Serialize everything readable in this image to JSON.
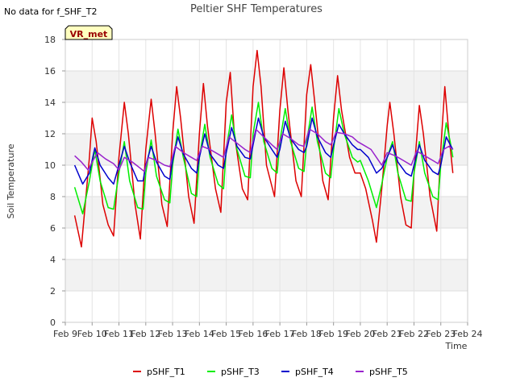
{
  "chart_data": {
    "type": "line",
    "title": "Peltier SHF Temperatures",
    "note": "No data for f_SHF_T2",
    "badge": "VR_met",
    "xlabel": "Time",
    "ylabel": "Soil Temperature",
    "xlim": [
      9,
      24
    ],
    "ylim": [
      0,
      18
    ],
    "x_ticks": [
      {
        "v": 9,
        "label": "Feb 9"
      },
      {
        "v": 10,
        "label": "Feb 10"
      },
      {
        "v": 11,
        "label": "Feb 11"
      },
      {
        "v": 12,
        "label": "Feb 12"
      },
      {
        "v": 13,
        "label": "Feb 13"
      },
      {
        "v": 14,
        "label": "Feb 14"
      },
      {
        "v": 15,
        "label": "Feb 15"
      },
      {
        "v": 16,
        "label": "Feb 16"
      },
      {
        "v": 17,
        "label": "Feb 17"
      },
      {
        "v": 18,
        "label": "Feb 18"
      },
      {
        "v": 19,
        "label": "Feb 19"
      },
      {
        "v": 20,
        "label": "Feb 20"
      },
      {
        "v": 21,
        "label": "Feb 21"
      },
      {
        "v": 22,
        "label": "Feb 22"
      },
      {
        "v": 23,
        "label": "Feb 23"
      },
      {
        "v": 24,
        "label": "Feb 24"
      }
    ],
    "y_ticks": [
      0,
      2,
      4,
      6,
      8,
      10,
      12,
      14,
      16,
      18
    ],
    "legend_position": "bottom",
    "series": [
      {
        "name": "pSHF_T1",
        "color": "#dd0000",
        "points": [
          [
            9.35,
            6.8
          ],
          [
            9.6,
            4.8
          ],
          [
            9.9,
            10.5
          ],
          [
            10.0,
            13.0
          ],
          [
            10.15,
            11.5
          ],
          [
            10.4,
            7.5
          ],
          [
            10.6,
            6.2
          ],
          [
            10.8,
            5.5
          ],
          [
            11.0,
            10.5
          ],
          [
            11.2,
            14.0
          ],
          [
            11.35,
            12.0
          ],
          [
            11.6,
            7.5
          ],
          [
            11.8,
            5.3
          ],
          [
            12.0,
            11.0
          ],
          [
            12.2,
            14.2
          ],
          [
            12.35,
            12.0
          ],
          [
            12.6,
            7.5
          ],
          [
            12.8,
            6.1
          ],
          [
            13.0,
            12.0
          ],
          [
            13.15,
            15.0
          ],
          [
            13.3,
            13.0
          ],
          [
            13.6,
            8.0
          ],
          [
            13.8,
            6.3
          ],
          [
            14.0,
            12.0
          ],
          [
            14.15,
            15.2
          ],
          [
            14.3,
            12.5
          ],
          [
            14.6,
            8.5
          ],
          [
            14.8,
            7.0
          ],
          [
            15.0,
            14.0
          ],
          [
            15.15,
            15.9
          ],
          [
            15.3,
            12.0
          ],
          [
            15.6,
            8.5
          ],
          [
            15.8,
            7.8
          ],
          [
            16.0,
            15.0
          ],
          [
            16.15,
            17.3
          ],
          [
            16.3,
            15.0
          ],
          [
            16.5,
            10.0
          ],
          [
            16.8,
            8.0
          ],
          [
            17.0,
            13.5
          ],
          [
            17.15,
            16.2
          ],
          [
            17.3,
            13.5
          ],
          [
            17.6,
            9.0
          ],
          [
            17.8,
            8.0
          ],
          [
            18.0,
            14.5
          ],
          [
            18.15,
            16.4
          ],
          [
            18.3,
            14.0
          ],
          [
            18.6,
            9.0
          ],
          [
            18.8,
            7.8
          ],
          [
            19.0,
            13.0
          ],
          [
            19.15,
            15.7
          ],
          [
            19.3,
            13.5
          ],
          [
            19.6,
            10.5
          ],
          [
            19.8,
            9.5
          ],
          [
            20.0,
            9.5
          ],
          [
            20.2,
            8.5
          ],
          [
            20.45,
            6.5
          ],
          [
            20.6,
            5.1
          ],
          [
            20.8,
            8.5
          ],
          [
            21.0,
            12.5
          ],
          [
            21.1,
            14.0
          ],
          [
            21.25,
            12.0
          ],
          [
            21.5,
            8.0
          ],
          [
            21.7,
            6.2
          ],
          [
            21.9,
            6.0
          ],
          [
            22.0,
            9.5
          ],
          [
            22.2,
            13.8
          ],
          [
            22.35,
            12.0
          ],
          [
            22.6,
            8.0
          ],
          [
            22.85,
            5.8
          ],
          [
            23.0,
            11.0
          ],
          [
            23.15,
            15.0
          ],
          [
            23.3,
            12.0
          ],
          [
            23.45,
            9.5
          ]
        ]
      },
      {
        "name": "pSHF_T3",
        "color": "#00ee00",
        "points": [
          [
            9.35,
            8.6
          ],
          [
            9.65,
            6.9
          ],
          [
            9.9,
            9.0
          ],
          [
            10.1,
            11.0
          ],
          [
            10.3,
            9.0
          ],
          [
            10.6,
            7.3
          ],
          [
            10.8,
            7.2
          ],
          [
            11.0,
            9.5
          ],
          [
            11.2,
            11.5
          ],
          [
            11.4,
            9.0
          ],
          [
            11.7,
            7.3
          ],
          [
            11.9,
            7.2
          ],
          [
            12.0,
            9.5
          ],
          [
            12.2,
            11.6
          ],
          [
            12.4,
            9.3
          ],
          [
            12.7,
            7.8
          ],
          [
            12.9,
            7.6
          ],
          [
            13.0,
            10.0
          ],
          [
            13.2,
            12.3
          ],
          [
            13.4,
            10.5
          ],
          [
            13.7,
            8.2
          ],
          [
            13.9,
            8.0
          ],
          [
            14.0,
            10.5
          ],
          [
            14.2,
            12.6
          ],
          [
            14.4,
            10.5
          ],
          [
            14.7,
            8.8
          ],
          [
            14.9,
            8.5
          ],
          [
            15.0,
            11.0
          ],
          [
            15.2,
            13.2
          ],
          [
            15.4,
            11.0
          ],
          [
            15.7,
            9.3
          ],
          [
            15.9,
            9.2
          ],
          [
            16.0,
            12.0
          ],
          [
            16.2,
            14.0
          ],
          [
            16.4,
            11.5
          ],
          [
            16.7,
            9.8
          ],
          [
            16.9,
            9.5
          ],
          [
            17.0,
            11.5
          ],
          [
            17.2,
            13.6
          ],
          [
            17.4,
            11.5
          ],
          [
            17.7,
            9.8
          ],
          [
            17.9,
            9.6
          ],
          [
            18.0,
            11.5
          ],
          [
            18.2,
            13.7
          ],
          [
            18.4,
            11.5
          ],
          [
            18.7,
            9.5
          ],
          [
            18.9,
            9.2
          ],
          [
            19.0,
            11.0
          ],
          [
            19.2,
            13.6
          ],
          [
            19.4,
            12.0
          ],
          [
            19.7,
            10.5
          ],
          [
            19.9,
            10.2
          ],
          [
            20.0,
            10.3
          ],
          [
            20.3,
            9.0
          ],
          [
            20.6,
            7.3
          ],
          [
            20.8,
            8.8
          ],
          [
            21.0,
            10.5
          ],
          [
            21.2,
            11.5
          ],
          [
            21.4,
            9.5
          ],
          [
            21.7,
            7.8
          ],
          [
            21.9,
            7.7
          ],
          [
            22.0,
            9.5
          ],
          [
            22.2,
            11.5
          ],
          [
            22.4,
            9.5
          ],
          [
            22.7,
            8.0
          ],
          [
            22.9,
            7.8
          ],
          [
            23.0,
            10.0
          ],
          [
            23.2,
            12.7
          ],
          [
            23.35,
            11.5
          ],
          [
            23.45,
            10.5
          ]
        ]
      },
      {
        "name": "pSHF_T4",
        "color": "#0000cc",
        "points": [
          [
            9.35,
            10.0
          ],
          [
            9.65,
            8.8
          ],
          [
            9.9,
            9.5
          ],
          [
            10.1,
            11.1
          ],
          [
            10.3,
            10.0
          ],
          [
            10.6,
            9.2
          ],
          [
            10.8,
            8.8
          ],
          [
            11.0,
            10.0
          ],
          [
            11.2,
            11.2
          ],
          [
            11.4,
            10.2
          ],
          [
            11.7,
            9.0
          ],
          [
            11.9,
            9.0
          ],
          [
            12.0,
            10.0
          ],
          [
            12.2,
            11.2
          ],
          [
            12.4,
            10.2
          ],
          [
            12.7,
            9.3
          ],
          [
            12.9,
            9.1
          ],
          [
            13.0,
            10.3
          ],
          [
            13.2,
            11.8
          ],
          [
            13.4,
            10.7
          ],
          [
            13.7,
            9.8
          ],
          [
            13.9,
            9.5
          ],
          [
            14.0,
            10.5
          ],
          [
            14.2,
            12.0
          ],
          [
            14.4,
            10.7
          ],
          [
            14.7,
            10.0
          ],
          [
            14.9,
            9.8
          ],
          [
            15.0,
            10.8
          ],
          [
            15.2,
            12.4
          ],
          [
            15.4,
            11.2
          ],
          [
            15.7,
            10.5
          ],
          [
            15.9,
            10.4
          ],
          [
            16.0,
            11.3
          ],
          [
            16.2,
            13.0
          ],
          [
            16.4,
            11.8
          ],
          [
            16.7,
            11.0
          ],
          [
            16.9,
            10.5
          ],
          [
            17.0,
            11.0
          ],
          [
            17.2,
            12.8
          ],
          [
            17.4,
            11.7
          ],
          [
            17.7,
            11.0
          ],
          [
            17.9,
            10.8
          ],
          [
            18.0,
            11.2
          ],
          [
            18.2,
            13.0
          ],
          [
            18.4,
            11.8
          ],
          [
            18.7,
            10.8
          ],
          [
            18.9,
            10.5
          ],
          [
            19.0,
            11.3
          ],
          [
            19.2,
            12.6
          ],
          [
            19.4,
            12.0
          ],
          [
            19.7,
            11.3
          ],
          [
            19.9,
            11.0
          ],
          [
            20.0,
            11.0
          ],
          [
            20.3,
            10.5
          ],
          [
            20.6,
            9.5
          ],
          [
            20.8,
            9.8
          ],
          [
            21.0,
            10.5
          ],
          [
            21.2,
            11.3
          ],
          [
            21.4,
            10.2
          ],
          [
            21.7,
            9.5
          ],
          [
            21.9,
            9.3
          ],
          [
            22.0,
            10.0
          ],
          [
            22.2,
            11.3
          ],
          [
            22.4,
            10.3
          ],
          [
            22.7,
            9.6
          ],
          [
            22.9,
            9.4
          ],
          [
            23.0,
            10.0
          ],
          [
            23.2,
            11.8
          ],
          [
            23.35,
            11.3
          ],
          [
            23.45,
            11.0
          ]
        ]
      },
      {
        "name": "pSHF_T5",
        "color": "#9922cc",
        "points": [
          [
            9.35,
            10.6
          ],
          [
            9.6,
            10.2
          ],
          [
            9.85,
            9.7
          ],
          [
            10.0,
            10.2
          ],
          [
            10.2,
            10.8
          ],
          [
            10.5,
            10.4
          ],
          [
            10.8,
            10.1
          ],
          [
            11.0,
            9.7
          ],
          [
            11.2,
            10.5
          ],
          [
            11.5,
            10.2
          ],
          [
            11.8,
            9.8
          ],
          [
            11.95,
            9.6
          ],
          [
            12.1,
            10.5
          ],
          [
            12.4,
            10.3
          ],
          [
            12.7,
            10.0
          ],
          [
            12.9,
            9.9
          ],
          [
            13.1,
            11.2
          ],
          [
            13.4,
            10.8
          ],
          [
            13.7,
            10.5
          ],
          [
            13.9,
            10.3
          ],
          [
            14.1,
            11.2
          ],
          [
            14.4,
            11.0
          ],
          [
            14.7,
            10.7
          ],
          [
            14.9,
            10.5
          ],
          [
            15.1,
            11.8
          ],
          [
            15.4,
            11.4
          ],
          [
            15.7,
            11.0
          ],
          [
            15.9,
            10.8
          ],
          [
            16.1,
            12.3
          ],
          [
            16.4,
            11.8
          ],
          [
            16.7,
            11.3
          ],
          [
            16.9,
            11.0
          ],
          [
            17.1,
            12.0
          ],
          [
            17.4,
            11.7
          ],
          [
            17.7,
            11.3
          ],
          [
            17.9,
            11.2
          ],
          [
            18.1,
            12.3
          ],
          [
            18.4,
            12.0
          ],
          [
            18.7,
            11.5
          ],
          [
            18.9,
            11.3
          ],
          [
            19.1,
            12.1
          ],
          [
            19.4,
            12.0
          ],
          [
            19.7,
            11.8
          ],
          [
            19.9,
            11.5
          ],
          [
            20.1,
            11.3
          ],
          [
            20.4,
            11.0
          ],
          [
            20.6,
            10.5
          ],
          [
            20.8,
            10.0
          ],
          [
            21.0,
            10.8
          ],
          [
            21.3,
            10.6
          ],
          [
            21.6,
            10.3
          ],
          [
            21.9,
            10.0
          ],
          [
            22.1,
            10.9
          ],
          [
            22.4,
            10.6
          ],
          [
            22.7,
            10.3
          ],
          [
            22.9,
            10.1
          ],
          [
            23.1,
            11.0
          ],
          [
            23.3,
            11.2
          ],
          [
            23.45,
            11.0
          ]
        ]
      }
    ]
  }
}
